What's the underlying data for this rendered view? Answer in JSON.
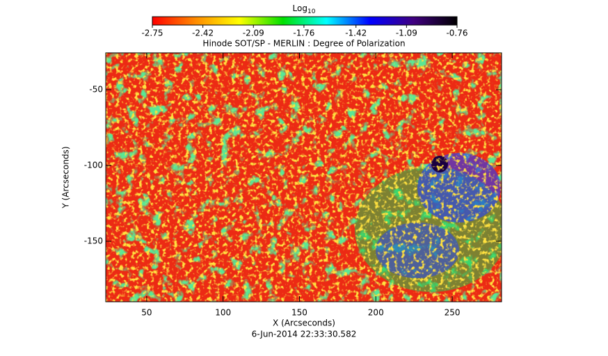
{
  "chart_data": {
    "type": "image",
    "title": "Hinode SOT/SP - MERLIN : Degree of Polarization",
    "colorbar_label": [
      "Log",
      "10"
    ],
    "colorbar_lim": [
      -2.75,
      -0.76
    ],
    "colorbar_ticks": [
      -2.75,
      -2.42,
      -2.09,
      -1.76,
      -1.42,
      -1.09,
      -0.76
    ],
    "colormap": [
      "#ff0000",
      "#ff8c00",
      "#ffff00",
      "#00e000",
      "#00ffff",
      "#0000ff",
      "#400080",
      "#000000"
    ],
    "x_label": "X (Arcseconds)",
    "y_label": "Y (Arcseconds)",
    "xlim": [
      23.2,
      282.3
    ],
    "xticks": [
      50,
      100,
      150,
      200,
      250
    ],
    "ylim": [
      -189.9,
      -25.7
    ],
    "yticks": [
      -50,
      -100,
      -150
    ],
    "footer": "6-Jun-2014 22:33:30.582"
  }
}
